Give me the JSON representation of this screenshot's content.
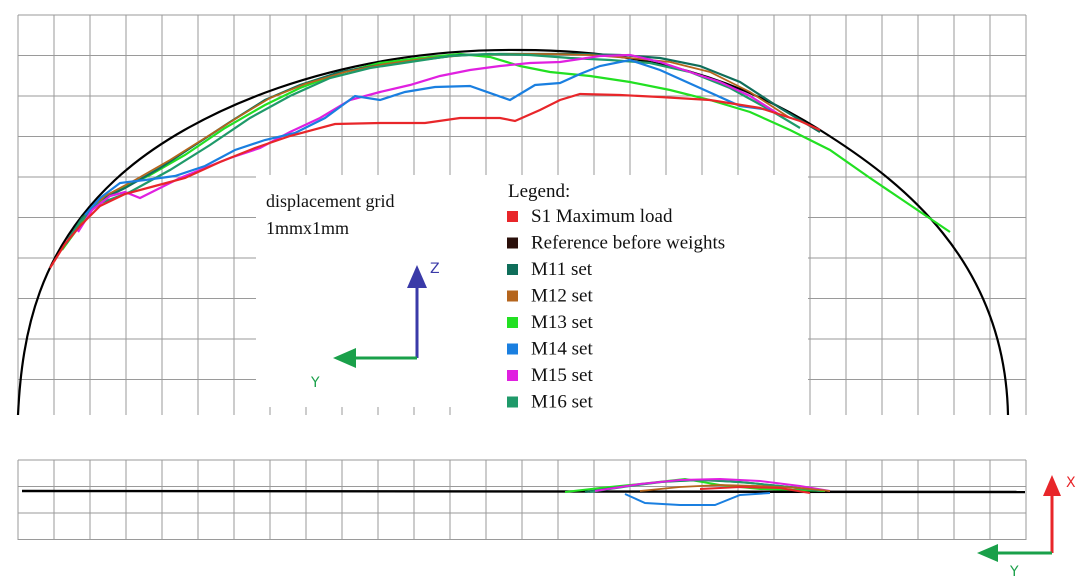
{
  "annotation": {
    "line1": "displacement grid",
    "line2": "1mmx1mm"
  },
  "legend": {
    "title": "Legend:",
    "items": [
      {
        "label": "S1 Maximum load",
        "color": "#e8262a"
      },
      {
        "label": "Reference before weights",
        "color": "#2a0f0a"
      },
      {
        "label": "M11 set",
        "color": "#0f6e5a"
      },
      {
        "label": "M12 set",
        "color": "#b5651d"
      },
      {
        "label": "M13 set",
        "color": "#22e022"
      },
      {
        "label": "M14 set",
        "color": "#1a7fe0"
      },
      {
        "label": "M15 set",
        "color": "#e020e0"
      },
      {
        "label": "M16 set",
        "color": "#1f9a6a"
      }
    ]
  },
  "axes_top": {
    "vertical_label": "Z",
    "vertical_color": "#3a3aa8",
    "horizontal_label": "Y",
    "horizontal_color": "#1aa04a"
  },
  "axes_bottom": {
    "vertical_label": "X",
    "vertical_color": "#e8262a",
    "horizontal_label": "Y",
    "horizontal_color": "#1aa04a"
  }
}
